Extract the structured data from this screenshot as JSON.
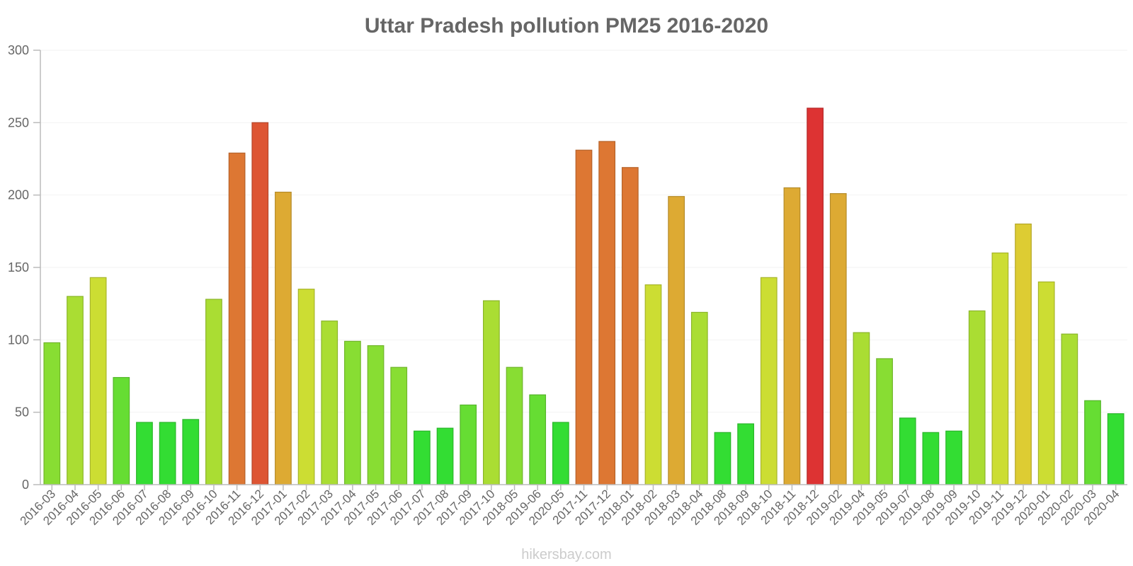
{
  "chart_data": {
    "type": "bar",
    "title": "Uttar Pradesh pollution PM25 2016-2020",
    "xlabel": "",
    "ylabel": "",
    "ylim": [
      0,
      300
    ],
    "yticks": [
      0,
      50,
      100,
      150,
      200,
      250,
      300
    ],
    "categories": [
      "2016-03",
      "2016-04",
      "2016-05",
      "2016-06",
      "2016-07",
      "2016-08",
      "2016-09",
      "2016-10",
      "2016-11",
      "2016-12",
      "2017-01",
      "2017-02",
      "2017-03",
      "2017-04",
      "2017-05",
      "2017-06",
      "2017-07",
      "2017-08",
      "2017-09",
      "2017-10",
      "2018-05",
      "2019-06",
      "2020-05",
      "2017-11",
      "2017-12",
      "2018-01",
      "2018-02",
      "2018-03",
      "2018-04",
      "2018-08",
      "2018-09",
      "2018-10",
      "2018-11",
      "2018-12",
      "2019-02",
      "2019-04",
      "2019-05",
      "2019-07",
      "2019-08",
      "2019-09",
      "2019-10",
      "2019-11",
      "2019-12",
      "2020-01",
      "2020-02",
      "2020-03",
      "2020-04"
    ],
    "values": [
      98,
      130,
      143,
      74,
      43,
      43,
      45,
      128,
      229,
      250,
      202,
      135,
      113,
      99,
      96,
      81,
      37,
      39,
      55,
      127,
      81,
      62,
      43,
      231,
      237,
      219,
      138,
      199,
      119,
      36,
      42,
      143,
      205,
      260,
      201,
      105,
      87,
      46,
      36,
      37,
      120,
      160,
      180,
      140,
      104,
      58,
      49
    ],
    "color_scale": [
      {
        "max": 50,
        "color": "#33dd33"
      },
      {
        "max": 75,
        "color": "#66dd33"
      },
      {
        "max": 100,
        "color": "#88dd33"
      },
      {
        "max": 130,
        "color": "#aadd33"
      },
      {
        "max": 175,
        "color": "#ccdd33"
      },
      {
        "max": 195,
        "color": "#ddcc33"
      },
      {
        "max": 215,
        "color": "#ddaa33"
      },
      {
        "max": 245,
        "color": "#dd7733"
      },
      {
        "max": 255,
        "color": "#dd5533"
      },
      {
        "max": 9999,
        "color": "#dd3333"
      }
    ]
  },
  "credit": "hikersbay.com"
}
